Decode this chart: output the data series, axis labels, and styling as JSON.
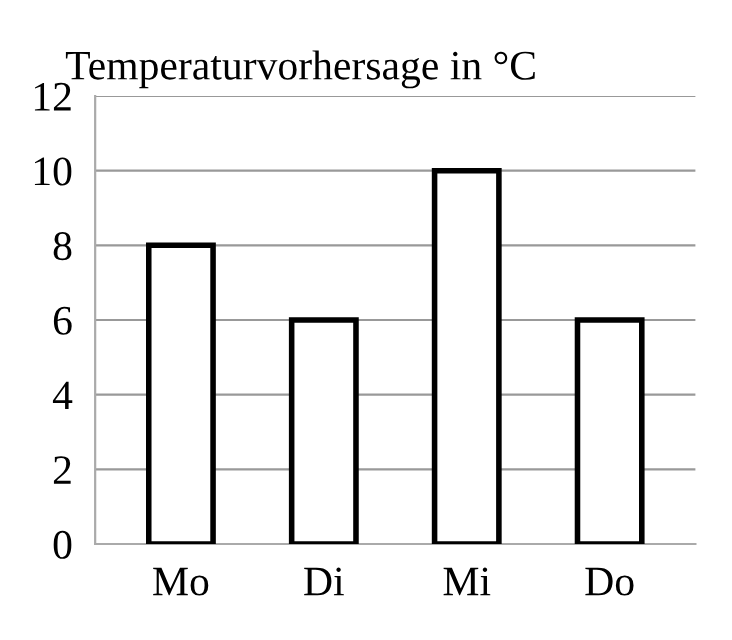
{
  "chart_data": {
    "type": "bar",
    "title": "Temperaturvorhersage in °C",
    "categories": [
      "Mo",
      "Di",
      "Mi",
      "Do"
    ],
    "values": [
      8,
      6,
      10,
      6
    ],
    "color": "#ffffff",
    "ylim": [
      0,
      12
    ],
    "yticks": [
      0,
      2,
      4,
      6,
      8,
      10,
      12
    ],
    "grid": "y",
    "legend": false
  }
}
